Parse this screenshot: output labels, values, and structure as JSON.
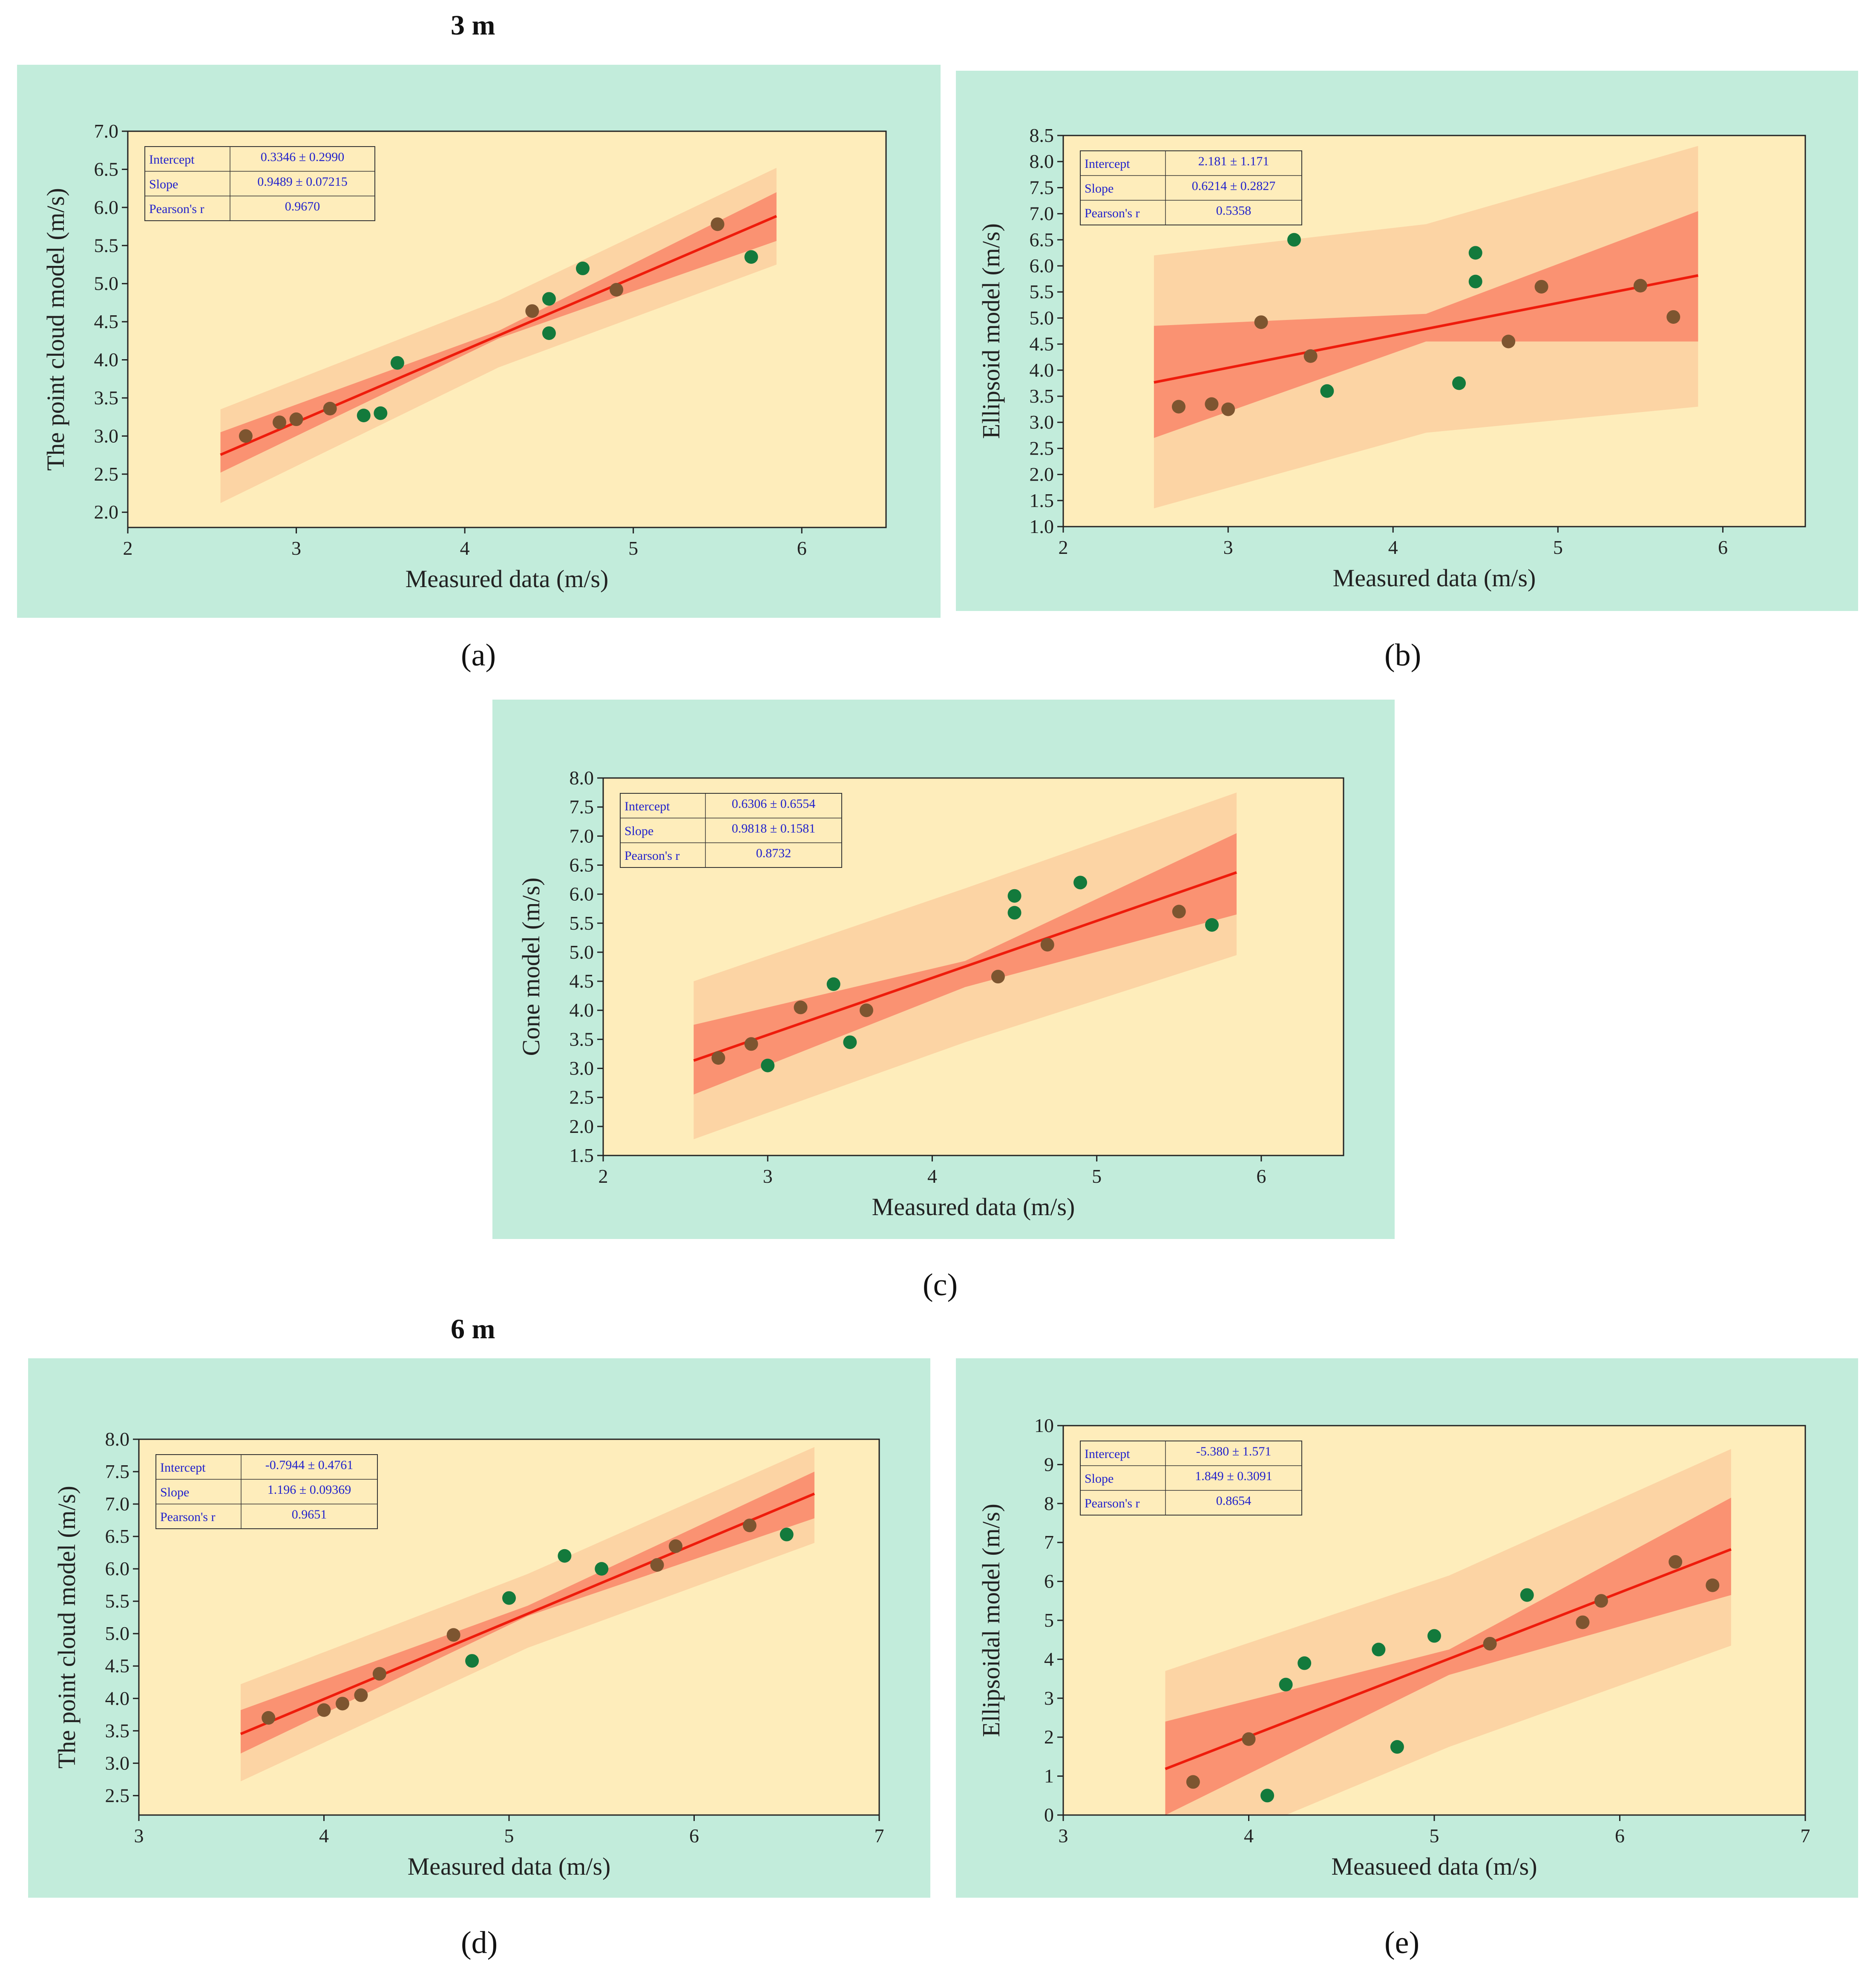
{
  "headings": {
    "top": "3 m",
    "bottom": "6 m"
  },
  "colors": {
    "panel_bg": "#c2ecdb",
    "plot_bg": "#feedbb",
    "prediction_band": "#fcd4a4",
    "confidence_band": "#fa9272",
    "fit_line": "#ee1c0c",
    "point_green": "#137a3c",
    "point_brown": "#7d5530",
    "stat_text": "#2222cc"
  },
  "chart_data": [
    {
      "type": "scatter",
      "panel_label": "(a)",
      "xlabel": "Measured data (m/s)",
      "ylabel": "The point cloud model (m/s)",
      "xlim": [
        2,
        6.5
      ],
      "ylim": [
        1.8,
        7.0
      ],
      "xticks": [
        "2",
        "3",
        "4",
        "5",
        "6"
      ],
      "yticks": [
        "2.0",
        "2.5",
        "3.0",
        "3.5",
        "4.0",
        "4.5",
        "5.0",
        "5.5",
        "6.0",
        "6.5",
        "7.0"
      ],
      "stats": {
        "intercept_label": "Intercept",
        "intercept": "0.3346 ± 0.2990",
        "slope_label": "Slope",
        "slope": "0.9489 ± 0.07215",
        "r_label": "Pearson's r",
        "r": "0.9670"
      },
      "fit": {
        "intercept": 0.3346,
        "slope": 0.9489,
        "x_range": [
          2.55,
          5.85
        ]
      },
      "bands": {
        "confidence": {
          "lower": [
            [
              2.55,
              2.52
            ],
            [
              4.2,
              4.28
            ],
            [
              5.85,
              5.56
            ]
          ],
          "upper": [
            [
              2.55,
              3.05
            ],
            [
              4.2,
              4.38
            ],
            [
              5.85,
              6.2
            ]
          ]
        },
        "prediction": {
          "lower": [
            [
              2.55,
              2.12
            ],
            [
              4.2,
              3.9
            ],
            [
              5.85,
              5.25
            ]
          ],
          "upper": [
            [
              2.55,
              3.35
            ],
            [
              4.2,
              4.78
            ],
            [
              5.85,
              6.52
            ]
          ]
        }
      },
      "points": [
        {
          "x": 2.7,
          "y": 3.0,
          "c": "brown"
        },
        {
          "x": 2.9,
          "y": 3.18,
          "c": "brown"
        },
        {
          "x": 3.0,
          "y": 3.22,
          "c": "brown"
        },
        {
          "x": 3.2,
          "y": 3.36,
          "c": "brown"
        },
        {
          "x": 3.4,
          "y": 3.27,
          "c": "green"
        },
        {
          "x": 3.5,
          "y": 3.3,
          "c": "green"
        },
        {
          "x": 3.6,
          "y": 3.96,
          "c": "green"
        },
        {
          "x": 4.4,
          "y": 4.64,
          "c": "brown"
        },
        {
          "x": 4.5,
          "y": 4.8,
          "c": "green"
        },
        {
          "x": 4.5,
          "y": 4.35,
          "c": "green"
        },
        {
          "x": 4.7,
          "y": 5.2,
          "c": "green"
        },
        {
          "x": 4.9,
          "y": 4.92,
          "c": "brown"
        },
        {
          "x": 5.5,
          "y": 5.78,
          "c": "brown"
        },
        {
          "x": 5.7,
          "y": 5.35,
          "c": "green"
        }
      ]
    },
    {
      "type": "scatter",
      "panel_label": "(b)",
      "xlabel": "Measured data (m/s)",
      "ylabel": "Ellipsoid model (m/s)",
      "xlim": [
        2,
        6.5
      ],
      "ylim": [
        1.0,
        8.5
      ],
      "xticks": [
        "2",
        "3",
        "4",
        "5",
        "6"
      ],
      "yticks": [
        "1.0",
        "1.5",
        "2.0",
        "2.5",
        "3.0",
        "3.5",
        "4.0",
        "4.5",
        "5.0",
        "5.5",
        "6.0",
        "6.5",
        "7.0",
        "7.5",
        "8.0",
        "8.5"
      ],
      "stats": {
        "intercept_label": "Intercept",
        "intercept": "2.181 ± 1.171",
        "slope_label": "Slope",
        "slope": "0.6214 ± 0.2827",
        "r_label": "Pearson's r",
        "r": "0.5358"
      },
      "fit": {
        "intercept": 2.181,
        "slope": 0.6214,
        "x_range": [
          2.55,
          5.85
        ]
      },
      "bands": {
        "confidence": {
          "lower": [
            [
              2.55,
              2.7
            ],
            [
              4.2,
              4.55
            ],
            [
              5.85,
              4.55
            ]
          ],
          "upper": [
            [
              2.55,
              4.85
            ],
            [
              4.2,
              5.08
            ],
            [
              5.85,
              7.05
            ]
          ]
        },
        "prediction": {
          "lower": [
            [
              2.55,
              1.35
            ],
            [
              4.2,
              2.8
            ],
            [
              5.85,
              3.3
            ]
          ],
          "upper": [
            [
              2.55,
              6.2
            ],
            [
              4.2,
              6.8
            ],
            [
              5.85,
              8.3
            ]
          ]
        }
      },
      "points": [
        {
          "x": 2.7,
          "y": 3.3,
          "c": "brown"
        },
        {
          "x": 2.9,
          "y": 3.35,
          "c": "brown"
        },
        {
          "x": 3.0,
          "y": 3.25,
          "c": "brown"
        },
        {
          "x": 3.2,
          "y": 4.92,
          "c": "brown"
        },
        {
          "x": 3.4,
          "y": 6.5,
          "c": "green"
        },
        {
          "x": 3.5,
          "y": 4.27,
          "c": "brown"
        },
        {
          "x": 3.6,
          "y": 3.6,
          "c": "green"
        },
        {
          "x": 4.4,
          "y": 3.75,
          "c": "green"
        },
        {
          "x": 4.5,
          "y": 6.25,
          "c": "green"
        },
        {
          "x": 4.5,
          "y": 5.7,
          "c": "green"
        },
        {
          "x": 4.7,
          "y": 4.55,
          "c": "brown"
        },
        {
          "x": 4.9,
          "y": 5.6,
          "c": "brown"
        },
        {
          "x": 5.5,
          "y": 5.62,
          "c": "brown"
        },
        {
          "x": 5.7,
          "y": 5.02,
          "c": "brown"
        }
      ]
    },
    {
      "type": "scatter",
      "panel_label": "(c)",
      "xlabel": "Measured data (m/s)",
      "ylabel": "Cone model (m/s)",
      "xlim": [
        2,
        6.5
      ],
      "ylim": [
        1.5,
        8.0
      ],
      "xticks": [
        "2",
        "3",
        "4",
        "5",
        "6"
      ],
      "yticks": [
        "1.5",
        "2.0",
        "2.5",
        "3.0",
        "3.5",
        "4.0",
        "4.5",
        "5.0",
        "5.5",
        "6.0",
        "6.5",
        "7.0",
        "7.5",
        "8.0"
      ],
      "stats": {
        "intercept_label": "Intercept",
        "intercept": "0.6306 ± 0.6554",
        "slope_label": "Slope",
        "slope": "0.9818 ± 0.1581",
        "r_label": "Pearson's r",
        "r": "0.8732"
      },
      "fit": {
        "intercept": 0.6306,
        "slope": 0.9818,
        "x_range": [
          2.55,
          5.85
        ]
      },
      "bands": {
        "confidence": {
          "lower": [
            [
              2.55,
              2.55
            ],
            [
              4.2,
              4.4
            ],
            [
              5.85,
              5.65
            ]
          ],
          "upper": [
            [
              2.55,
              3.75
            ],
            [
              4.2,
              4.85
            ],
            [
              5.85,
              7.05
            ]
          ]
        },
        "prediction": {
          "lower": [
            [
              2.55,
              1.78
            ],
            [
              4.2,
              3.45
            ],
            [
              5.85,
              4.95
            ]
          ],
          "upper": [
            [
              2.55,
              4.5
            ],
            [
              4.2,
              6.1
            ],
            [
              5.85,
              7.75
            ]
          ]
        }
      },
      "points": [
        {
          "x": 2.7,
          "y": 3.18,
          "c": "brown"
        },
        {
          "x": 2.9,
          "y": 3.42,
          "c": "brown"
        },
        {
          "x": 3.0,
          "y": 3.05,
          "c": "green"
        },
        {
          "x": 3.2,
          "y": 4.05,
          "c": "brown"
        },
        {
          "x": 3.4,
          "y": 4.45,
          "c": "green"
        },
        {
          "x": 3.5,
          "y": 3.45,
          "c": "green"
        },
        {
          "x": 3.6,
          "y": 4.0,
          "c": "brown"
        },
        {
          "x": 4.4,
          "y": 4.58,
          "c": "brown"
        },
        {
          "x": 4.5,
          "y": 5.97,
          "c": "green"
        },
        {
          "x": 4.5,
          "y": 5.68,
          "c": "green"
        },
        {
          "x": 4.7,
          "y": 5.13,
          "c": "brown"
        },
        {
          "x": 4.9,
          "y": 6.2,
          "c": "green"
        },
        {
          "x": 5.5,
          "y": 5.7,
          "c": "brown"
        },
        {
          "x": 5.7,
          "y": 5.47,
          "c": "green"
        }
      ]
    },
    {
      "type": "scatter",
      "panel_label": "(d)",
      "xlabel": "Measured data (m/s)",
      "ylabel": "The point cloud model (m/s)",
      "xlim": [
        3,
        7
      ],
      "ylim": [
        2.2,
        8.0
      ],
      "xticks": [
        "3",
        "4",
        "5",
        "6",
        "7"
      ],
      "yticks": [
        "2.5",
        "3.0",
        "3.5",
        "4.0",
        "4.5",
        "5.0",
        "5.5",
        "6.0",
        "6.5",
        "7.0",
        "7.5",
        "8.0"
      ],
      "stats": {
        "intercept_label": "Intercept",
        "intercept": "-0.7944 ± 0.4761",
        "slope_label": "Slope",
        "slope": "1.196 ± 0.09369",
        "r_label": "Pearson's r",
        "r": "0.9651"
      },
      "fit": {
        "intercept": -0.7944,
        "slope": 1.196,
        "x_range": [
          3.55,
          6.65
        ]
      },
      "bands": {
        "confidence": {
          "lower": [
            [
              3.55,
              3.15
            ],
            [
              5.1,
              5.27
            ],
            [
              6.65,
              6.78
            ]
          ],
          "upper": [
            [
              3.55,
              3.82
            ],
            [
              5.1,
              5.43
            ],
            [
              6.65,
              7.5
            ]
          ]
        },
        "prediction": {
          "lower": [
            [
              3.55,
              2.72
            ],
            [
              5.1,
              4.78
            ],
            [
              6.65,
              6.4
            ]
          ],
          "upper": [
            [
              3.55,
              4.22
            ],
            [
              5.1,
              5.92
            ],
            [
              6.65,
              7.88
            ]
          ]
        }
      },
      "points": [
        {
          "x": 3.7,
          "y": 3.7,
          "c": "brown"
        },
        {
          "x": 4.0,
          "y": 3.82,
          "c": "brown"
        },
        {
          "x": 4.1,
          "y": 3.92,
          "c": "brown"
        },
        {
          "x": 4.2,
          "y": 4.05,
          "c": "brown"
        },
        {
          "x": 4.3,
          "y": 4.38,
          "c": "brown"
        },
        {
          "x": 4.7,
          "y": 4.98,
          "c": "brown"
        },
        {
          "x": 4.8,
          "y": 4.58,
          "c": "green"
        },
        {
          "x": 5.0,
          "y": 5.55,
          "c": "green"
        },
        {
          "x": 5.3,
          "y": 6.2,
          "c": "green"
        },
        {
          "x": 5.5,
          "y": 6.0,
          "c": "green"
        },
        {
          "x": 5.8,
          "y": 6.06,
          "c": "brown"
        },
        {
          "x": 5.9,
          "y": 6.35,
          "c": "brown"
        },
        {
          "x": 6.3,
          "y": 6.67,
          "c": "brown"
        },
        {
          "x": 6.5,
          "y": 6.53,
          "c": "green"
        }
      ]
    },
    {
      "type": "scatter",
      "panel_label": "(e)",
      "xlabel": "Measueed data (m/s)",
      "ylabel": "Ellipsoidal model (m/s)",
      "xlim": [
        3,
        7
      ],
      "ylim": [
        0,
        10
      ],
      "xticks": [
        "3",
        "4",
        "5",
        "6",
        "7"
      ],
      "yticks": [
        "0",
        "1",
        "2",
        "3",
        "4",
        "5",
        "6",
        "7",
        "8",
        "9",
        "10"
      ],
      "stats": {
        "intercept_label": "Intercept",
        "intercept": "-5.380 ± 1.571",
        "slope_label": "Slope",
        "slope": "1.849 ± 0.3091",
        "r_label": "Pearson's r",
        "r": "0.8654"
      },
      "fit": {
        "intercept": -5.38,
        "slope": 1.849,
        "x_range": [
          3.55,
          6.6
        ]
      },
      "bands": {
        "confidence": {
          "lower": [
            [
              3.55,
              0.0
            ],
            [
              5.08,
              3.6
            ],
            [
              6.6,
              5.65
            ]
          ],
          "upper": [
            [
              3.55,
              2.4
            ],
            [
              5.08,
              4.25
            ],
            [
              6.6,
              8.15
            ]
          ]
        },
        "prediction": {
          "lower": [
            [
              3.55,
              0.0
            ],
            [
              4.2,
              0.0
            ],
            [
              5.08,
              1.75
            ],
            [
              6.6,
              4.35
            ]
          ],
          "upper": [
            [
              3.55,
              3.7
            ],
            [
              5.08,
              6.15
            ],
            [
              6.6,
              9.4
            ]
          ]
        }
      },
      "points": [
        {
          "x": 3.7,
          "y": 0.85,
          "c": "brown"
        },
        {
          "x": 4.0,
          "y": 1.95,
          "c": "brown"
        },
        {
          "x": 4.1,
          "y": 0.5,
          "c": "green"
        },
        {
          "x": 4.2,
          "y": 3.35,
          "c": "green"
        },
        {
          "x": 4.3,
          "y": 3.9,
          "c": "green"
        },
        {
          "x": 4.7,
          "y": 4.25,
          "c": "green"
        },
        {
          "x": 4.8,
          "y": 1.75,
          "c": "green"
        },
        {
          "x": 5.0,
          "y": 4.6,
          "c": "green"
        },
        {
          "x": 5.3,
          "y": 4.4,
          "c": "brown"
        },
        {
          "x": 5.5,
          "y": 5.65,
          "c": "green"
        },
        {
          "x": 5.8,
          "y": 4.95,
          "c": "brown"
        },
        {
          "x": 5.9,
          "y": 5.5,
          "c": "brown"
        },
        {
          "x": 6.3,
          "y": 6.5,
          "c": "brown"
        },
        {
          "x": 6.5,
          "y": 5.9,
          "c": "brown"
        }
      ]
    }
  ]
}
